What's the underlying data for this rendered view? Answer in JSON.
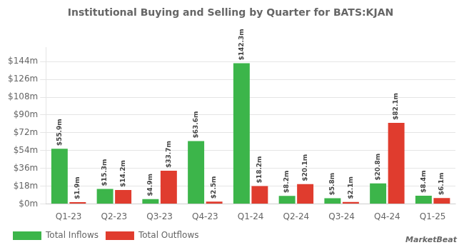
{
  "chart_data": {
    "type": "bar",
    "title": "Institutional Buying and Selling by Quarter for BATS:KJAN",
    "categories": [
      "Q1-23",
      "Q2-23",
      "Q3-23",
      "Q4-23",
      "Q1-24",
      "Q2-24",
      "Q3-24",
      "Q4-24",
      "Q1-25"
    ],
    "series": [
      {
        "name": "Total Inflows",
        "color": "#3cb54a",
        "values": [
          55.9,
          15.3,
          4.9,
          63.6,
          142.3,
          8.2,
          5.8,
          20.8,
          8.4
        ],
        "value_labels": [
          "$55.9m",
          "$15.3m",
          "$4.9m",
          "$63.6m",
          "$142.3m",
          "$8.2m",
          "$5.8m",
          "$20.8m",
          "$8.4m"
        ]
      },
      {
        "name": "Total Outflows",
        "color": "#e03c2e",
        "values": [
          1.9,
          14.2,
          33.7,
          2.5,
          18.2,
          20.1,
          2.1,
          82.1,
          6.1
        ],
        "value_labels": [
          "$1.9m",
          "$14.2m",
          "$33.7m",
          "$2.5m",
          "$18.2m",
          "$20.1m",
          "$2.1m",
          "$82.1m",
          "$6.1m"
        ]
      }
    ],
    "ylim": [
      0,
      158
    ],
    "yticks": [
      {
        "value": 0,
        "label": "$0m"
      },
      {
        "value": 18,
        "label": "$18m"
      },
      {
        "value": 36,
        "label": "$36m"
      },
      {
        "value": 54,
        "label": "$54m"
      },
      {
        "value": 72,
        "label": "$72m"
      },
      {
        "value": 90,
        "label": "$90m"
      },
      {
        "value": 108,
        "label": "$108m"
      },
      {
        "value": 126,
        "label": "$126m"
      },
      {
        "value": 144,
        "label": "$144m"
      }
    ],
    "grid": true,
    "legend": "lower left",
    "data_labels": true,
    "annotations": [
      "MarketBeat"
    ]
  }
}
